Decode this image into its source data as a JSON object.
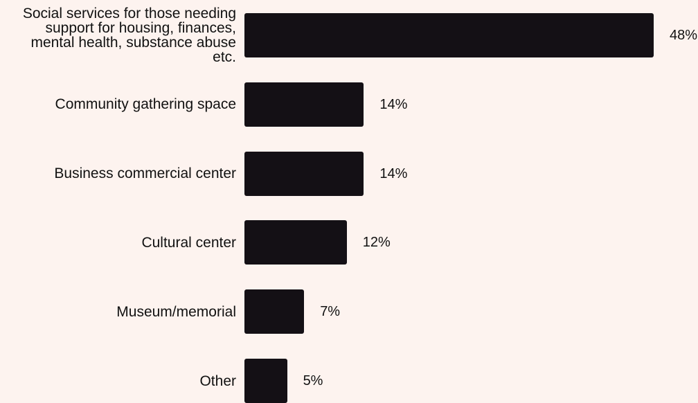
{
  "chart_data": {
    "type": "bar",
    "orientation": "horizontal",
    "categories": [
      "Social services for those needing\nsupport for housing, finances,\nmental health, substance abuse\netc.",
      "Community gathering space",
      "Business commercial center",
      "Cultural center",
      "Museum/memorial",
      "Other"
    ],
    "values": [
      48,
      14,
      14,
      12,
      7,
      5
    ],
    "value_labels": [
      "48%",
      "14%",
      "14%",
      "12%",
      "7%",
      "5%"
    ],
    "title": "",
    "xlabel": "",
    "ylabel": "",
    "xlim": [
      0,
      48
    ],
    "grid": false,
    "legend": "none",
    "bar_color": "#141015",
    "background_color": "#fdf3ef"
  }
}
